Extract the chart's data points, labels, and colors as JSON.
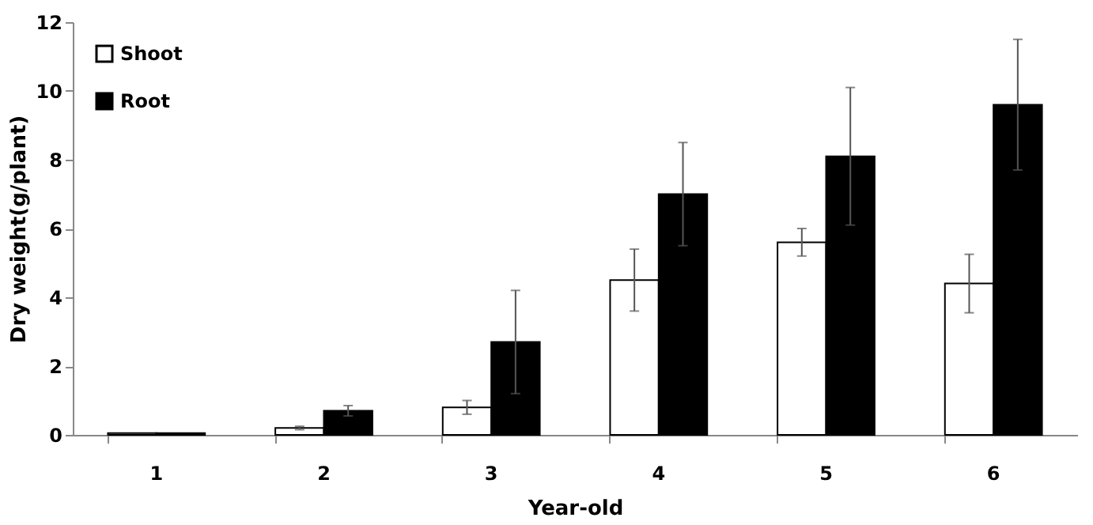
{
  "chart_data": {
    "type": "bar",
    "xlabel": "Year-old",
    "ylabel": "Dry weight(g/plant)",
    "categories": [
      "1",
      "2",
      "3",
      "4",
      "5",
      "6"
    ],
    "series": [
      {
        "name": "Shoot",
        "color": "#ffffff",
        "values": [
          0.05,
          0.2,
          0.8,
          4.5,
          5.6,
          4.4
        ],
        "errors": [
          null,
          0.05,
          0.2,
          0.9,
          0.4,
          0.85
        ]
      },
      {
        "name": "Root",
        "color": "#000000",
        "values": [
          0.05,
          0.7,
          2.7,
          7.0,
          8.1,
          9.6
        ],
        "errors": [
          null,
          0.15,
          1.5,
          1.5,
          2.0,
          1.9
        ]
      }
    ],
    "ylim": [
      0,
      12
    ],
    "yticks": [
      0,
      2,
      4,
      6,
      8,
      10,
      12
    ],
    "grid": false,
    "legend": "top left"
  }
}
